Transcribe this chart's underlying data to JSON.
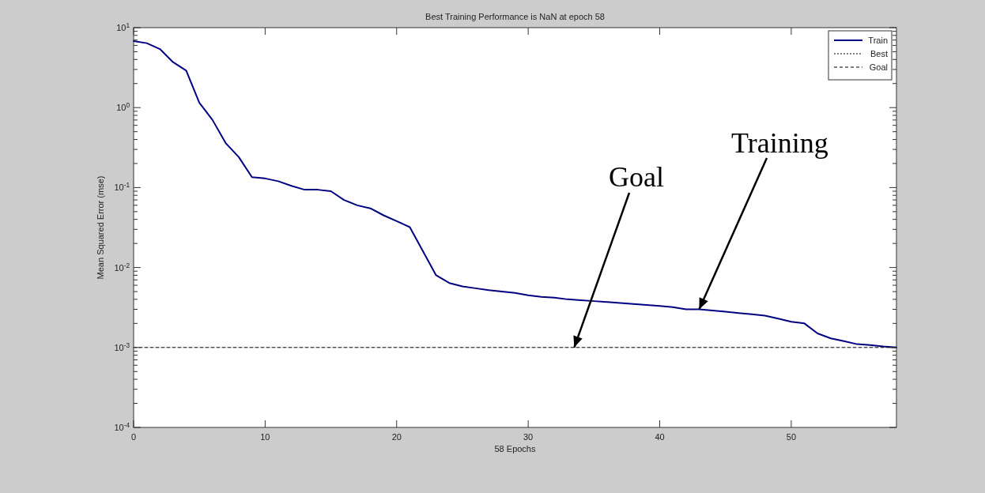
{
  "chart_data": {
    "type": "line",
    "title": "Best Training Performance is NaN at epoch 58",
    "xlabel": "58 Epochs",
    "ylabel": "Mean Squared Error  (mse)",
    "log": "y",
    "grid": false,
    "legend": "top right",
    "xlim": [
      0,
      58
    ],
    "xticks": [
      0,
      10,
      20,
      30,
      40,
      50
    ],
    "ylim": [
      0.0001,
      10
    ],
    "yticks": [
      {
        "value": 0.0001,
        "label": "10$^{-4}$"
      },
      {
        "value": 0.0002,
        "label": null
      },
      {
        "value": 0.0003,
        "label": null
      },
      {
        "value": 0.0004,
        "label": null
      },
      {
        "value": 0.0005,
        "label": null
      },
      {
        "value": 0.0006,
        "label": null
      },
      {
        "value": 0.0007,
        "label": null
      },
      {
        "value": 0.0008,
        "label": null
      },
      {
        "value": 0.0009,
        "label": null
      },
      {
        "value": 0.001,
        "label": "10$^{-3}$"
      },
      {
        "value": 0.002,
        "label": null
      },
      {
        "value": 0.003,
        "label": null
      },
      {
        "value": 0.004,
        "label": null
      },
      {
        "value": 0.005,
        "label": null
      },
      {
        "value": 0.006,
        "label": null
      },
      {
        "value": 0.007,
        "label": null
      },
      {
        "value": 0.008,
        "label": null
      },
      {
        "value": 0.009,
        "label": null
      },
      {
        "value": 0.01,
        "label": "10$^{-2}$"
      },
      {
        "value": 0.02,
        "label": null
      },
      {
        "value": 0.03,
        "label": null
      },
      {
        "value": 0.04,
        "label": null
      },
      {
        "value": 0.05,
        "label": null
      },
      {
        "value": 0.06,
        "label": null
      },
      {
        "value": 0.07,
        "label": null
      },
      {
        "value": 0.08,
        "label": null
      },
      {
        "value": 0.09,
        "label": null
      },
      {
        "value": 0.1,
        "label": "10$^{-1}$"
      },
      {
        "value": 0.2,
        "label": null
      },
      {
        "value": 0.3,
        "label": null
      },
      {
        "value": 0.4,
        "label": null
      },
      {
        "value": 0.5,
        "label": null
      },
      {
        "value": 0.6,
        "label": null
      },
      {
        "value": 0.7,
        "label": null
      },
      {
        "value": 0.8,
        "label": null
      },
      {
        "value": 0.9,
        "label": null
      },
      {
        "value": 1,
        "label": "10$^{0}$"
      },
      {
        "value": 2,
        "label": null
      },
      {
        "value": 3,
        "label": null
      },
      {
        "value": 4,
        "label": null
      },
      {
        "value": 5,
        "label": null
      },
      {
        "value": 6,
        "label": null
      },
      {
        "value": 7,
        "label": null
      },
      {
        "value": 8,
        "label": null
      },
      {
        "value": 9,
        "label": null
      },
      {
        "value": 10,
        "label": "10$^{1}$"
      }
    ],
    "series": [
      {
        "name": "Train",
        "color": "#000080",
        "line_style": "solid",
        "x": [
          0,
          1,
          2,
          3,
          4,
          5,
          6,
          7,
          8,
          9,
          10,
          11,
          12,
          13,
          14,
          15,
          16,
          17,
          18,
          19,
          20,
          21,
          22,
          23,
          24,
          25,
          26,
          27,
          28,
          29,
          30,
          31,
          32,
          33,
          34,
          35,
          36,
          37,
          38,
          39,
          40,
          41,
          42,
          43,
          44,
          45,
          46,
          47,
          48,
          49,
          50,
          51,
          52,
          53,
          54,
          55,
          56,
          57,
          58
        ],
        "values": [
          6.8,
          6.4,
          5.4,
          3.7,
          2.9,
          1.15,
          0.7,
          0.36,
          0.24,
          0.135,
          0.13,
          0.12,
          0.105,
          0.094,
          0.094,
          0.09,
          0.07,
          0.06,
          0.055,
          0.045,
          0.038,
          0.032,
          0.016,
          0.008,
          0.0064,
          0.0058,
          0.0055,
          0.0052,
          0.005,
          0.0048,
          0.0045,
          0.0043,
          0.0042,
          0.004,
          0.0039,
          0.0038,
          0.0037,
          0.0036,
          0.0035,
          0.0034,
          0.0033,
          0.0032,
          0.003,
          0.003,
          0.0029,
          0.0028,
          0.0027,
          0.0026,
          0.0025,
          0.0023,
          0.0021,
          0.002,
          0.0015,
          0.0013,
          0.0012,
          0.0011,
          0.00107,
          0.00103,
          0.001
        ]
      },
      {
        "name": "Best",
        "color": "#000000",
        "line_style": "dotted"
      },
      {
        "name": "Goal",
        "color": "#000000",
        "line_style": "dashed",
        "x": [
          0,
          58
        ],
        "values": [
          0.001,
          0.001
        ]
      }
    ],
    "annotations": [
      {
        "text": "Goal",
        "x": 33.5,
        "y": 0.001
      },
      {
        "text": "Training",
        "x": 43,
        "y": 0.003
      }
    ]
  }
}
